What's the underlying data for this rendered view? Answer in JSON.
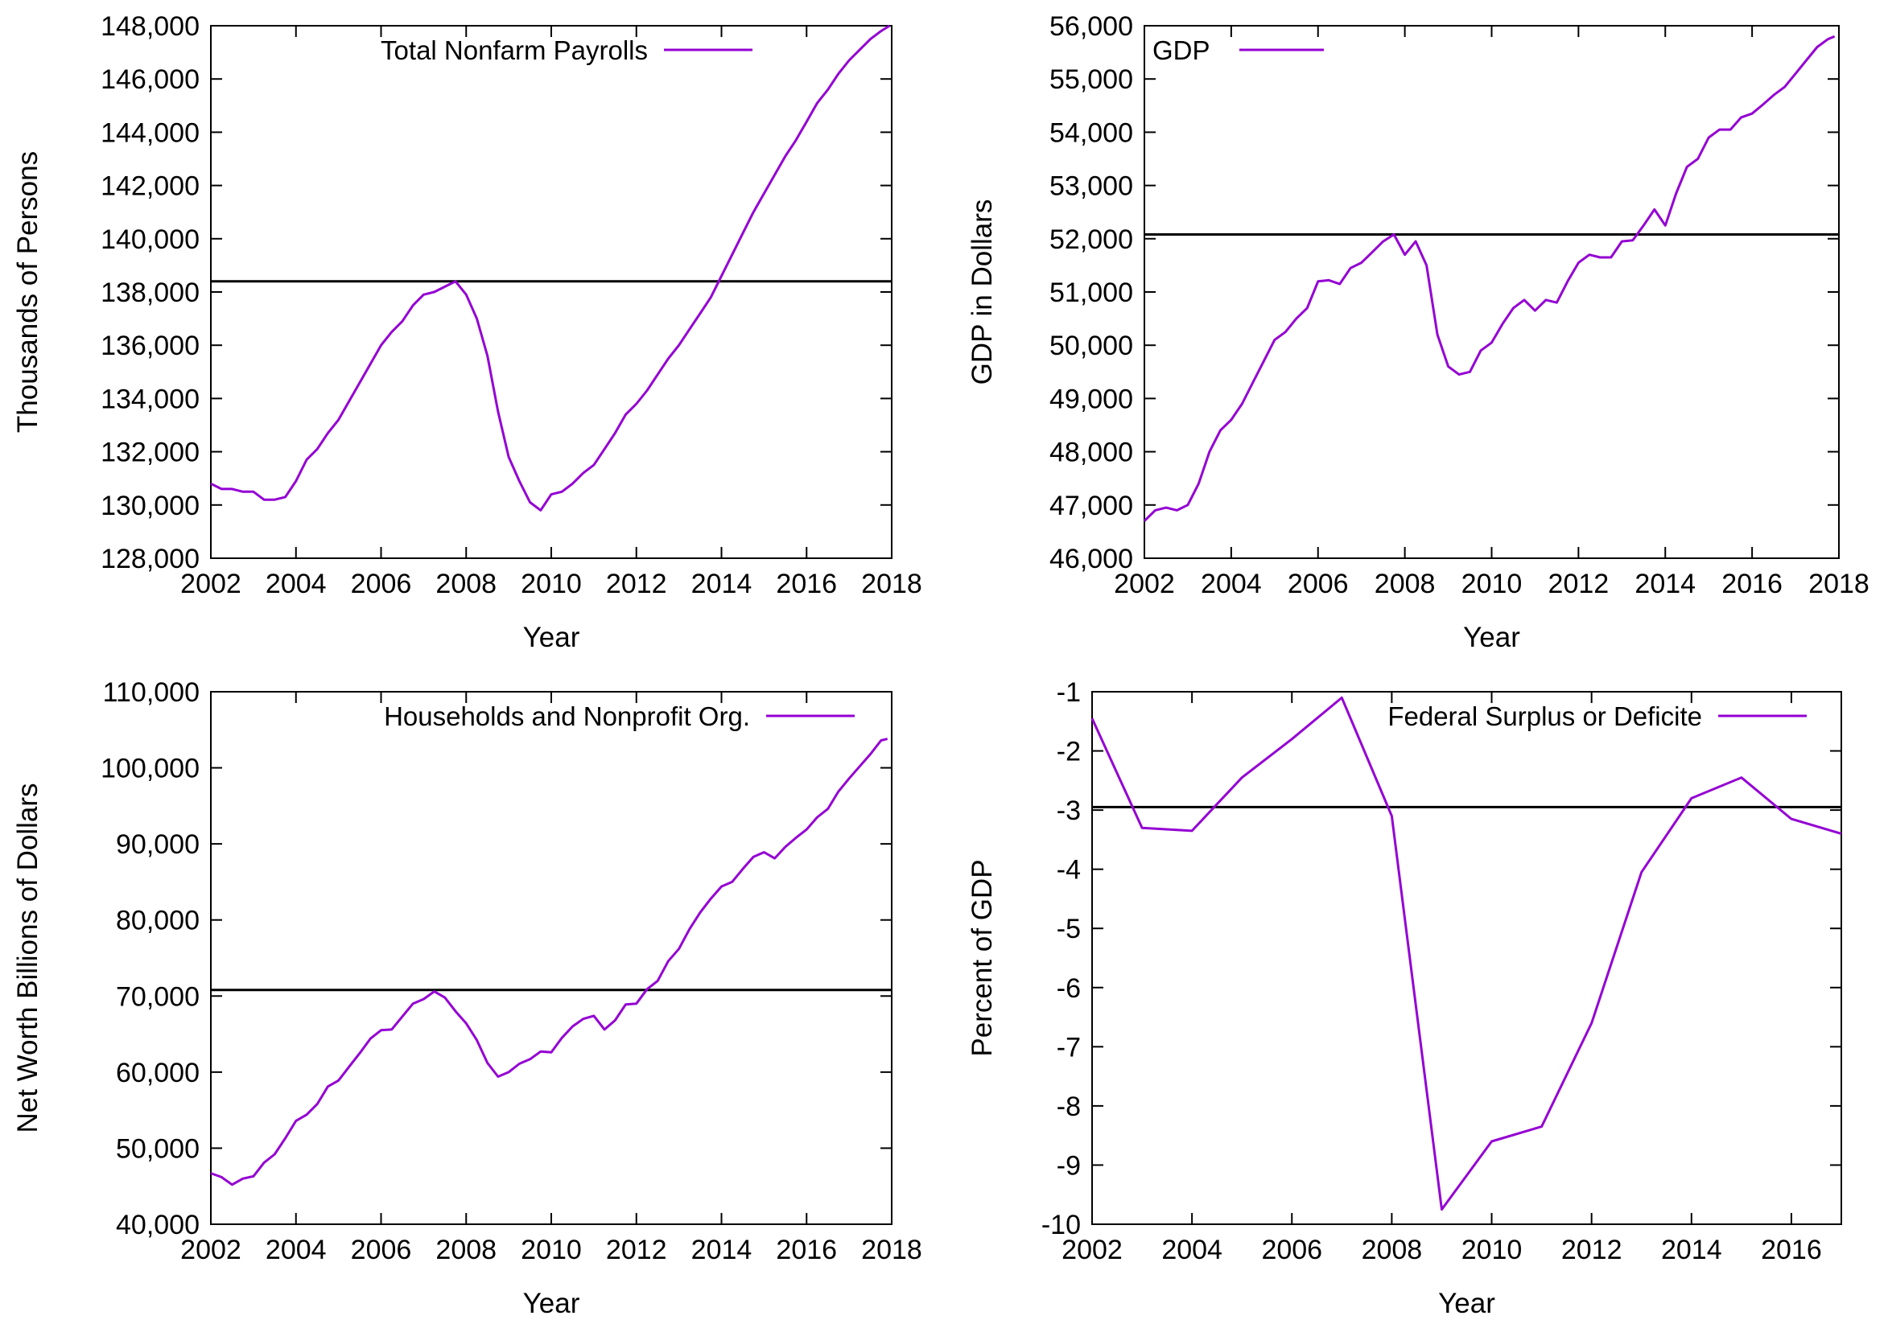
{
  "chart_data": [
    {
      "type": "line",
      "legend": "Total Nonfarm Payrolls",
      "legend_position": "top",
      "xlabel": "Year",
      "ylabel": "Thousands of Persons",
      "xlim": [
        2002,
        2018
      ],
      "ylim": [
        128000,
        148000
      ],
      "xticks": [
        2002,
        2004,
        2006,
        2008,
        2010,
        2012,
        2014,
        2016,
        2018
      ],
      "yticks": [
        128000,
        130000,
        132000,
        134000,
        136000,
        138000,
        140000,
        142000,
        144000,
        146000,
        148000
      ],
      "xtick_labels": [
        "2002",
        "2004",
        "2006",
        "2008",
        "2010",
        "2012",
        "2014",
        "2016",
        "2018"
      ],
      "ytick_labels": [
        "128,000",
        "130,000",
        "132,000",
        "134,000",
        "136,000",
        "138,000",
        "140,000",
        "142,000",
        "144,000",
        "146,000",
        "148,000"
      ],
      "reference_line": 138400,
      "line_color": "#9400d3",
      "series": [
        {
          "x": [
            2002.0,
            2002.25,
            2002.5,
            2002.75,
            2003.0,
            2003.25,
            2003.5,
            2003.75,
            2004.0,
            2004.25,
            2004.5,
            2004.75,
            2005.0,
            2005.25,
            2005.5,
            2005.75,
            2006.0,
            2006.25,
            2006.5,
            2006.75,
            2007.0,
            2007.25,
            2007.5,
            2007.75,
            2008.0,
            2008.25,
            2008.5,
            2008.75,
            2009.0,
            2009.25,
            2009.5,
            2009.75,
            2010.0,
            2010.25,
            2010.5,
            2010.75,
            2011.0,
            2011.25,
            2011.5,
            2011.75,
            2012.0,
            2012.25,
            2012.5,
            2012.75,
            2013.0,
            2013.25,
            2013.5,
            2013.75,
            2014.0,
            2014.25,
            2014.5,
            2014.75,
            2015.0,
            2015.25,
            2015.5,
            2015.75,
            2016.0,
            2016.25,
            2016.5,
            2016.75,
            2017.0,
            2017.25,
            2017.5,
            2017.75,
            2017.95
          ],
          "y": [
            130800,
            130600,
            130600,
            130500,
            130500,
            130200,
            130200,
            130300,
            130900,
            131700,
            132100,
            132700,
            133200,
            133900,
            134600,
            135300,
            136000,
            136500,
            136900,
            137500,
            137900,
            138000,
            138200,
            138400,
            137900,
            137000,
            135600,
            133500,
            131800,
            130900,
            130100,
            129800,
            130400,
            130500,
            130800,
            131200,
            131500,
            132100,
            132700,
            133400,
            133800,
            134300,
            134900,
            135500,
            136000,
            136600,
            137200,
            137800,
            138600,
            139400,
            140200,
            141000,
            141700,
            142400,
            143100,
            143700,
            144400,
            145100,
            145600,
            146200,
            146700,
            147100,
            147500,
            147800,
            148000
          ]
        }
      ]
    },
    {
      "type": "line",
      "legend": "GDP",
      "legend_position": "top-left",
      "xlabel": "Year",
      "ylabel": "GDP in Dollars",
      "xlim": [
        2002,
        2018
      ],
      "ylim": [
        46000,
        56000
      ],
      "xticks": [
        2002,
        2004,
        2006,
        2008,
        2010,
        2012,
        2014,
        2016,
        2018
      ],
      "yticks": [
        46000,
        47000,
        48000,
        49000,
        50000,
        51000,
        52000,
        53000,
        54000,
        55000,
        56000
      ],
      "xtick_labels": [
        "2002",
        "2004",
        "2006",
        "2008",
        "2010",
        "2012",
        "2014",
        "2016",
        "2018"
      ],
      "ytick_labels": [
        "46,000",
        "47,000",
        "48,000",
        "49,000",
        "50,000",
        "51,000",
        "52,000",
        "53,000",
        "54,000",
        "55,000",
        "56,000"
      ],
      "reference_line": 52080,
      "line_color": "#9400d3",
      "series": [
        {
          "x": [
            2002.0,
            2002.25,
            2002.5,
            2002.75,
            2003.0,
            2003.25,
            2003.5,
            2003.75,
            2004.0,
            2004.25,
            2004.5,
            2004.75,
            2005.0,
            2005.25,
            2005.5,
            2005.75,
            2006.0,
            2006.25,
            2006.5,
            2006.75,
            2007.0,
            2007.25,
            2007.5,
            2007.75,
            2008.0,
            2008.25,
            2008.5,
            2008.75,
            2009.0,
            2009.25,
            2009.5,
            2009.75,
            2010.0,
            2010.25,
            2010.5,
            2010.75,
            2011.0,
            2011.25,
            2011.5,
            2011.75,
            2012.0,
            2012.25,
            2012.5,
            2012.75,
            2013.0,
            2013.25,
            2013.5,
            2013.75,
            2014.0,
            2014.25,
            2014.5,
            2014.75,
            2015.0,
            2015.25,
            2015.5,
            2015.75,
            2016.0,
            2016.25,
            2016.5,
            2016.75,
            2017.0,
            2017.25,
            2017.5,
            2017.75,
            2017.9
          ],
          "y": [
            46700,
            46900,
            46950,
            46900,
            47000,
            47400,
            48000,
            48400,
            48600,
            48900,
            49300,
            49700,
            50100,
            50250,
            50500,
            50700,
            51200,
            51220,
            51150,
            51450,
            51550,
            51750,
            51950,
            52080,
            51700,
            51950,
            51500,
            50200,
            49600,
            49450,
            49500,
            49900,
            50050,
            50400,
            50700,
            50850,
            50650,
            50850,
            50800,
            51200,
            51550,
            51700,
            51650,
            51650,
            51950,
            51970,
            52250,
            52550,
            52250,
            52850,
            53350,
            53500,
            53900,
            54050,
            54050,
            54280,
            54350,
            54520,
            54700,
            54850,
            55100,
            55350,
            55600,
            55750,
            55800
          ]
        }
      ]
    },
    {
      "type": "line",
      "legend": "Households and Nonprofit Org.",
      "legend_position": "top",
      "xlabel": "Year",
      "ylabel": "Net Worth Billions of Dollars",
      "xlim": [
        2002,
        2018
      ],
      "ylim": [
        40000,
        110000
      ],
      "xticks": [
        2002,
        2004,
        2006,
        2008,
        2010,
        2012,
        2014,
        2016,
        2018
      ],
      "yticks": [
        40000,
        50000,
        60000,
        70000,
        80000,
        90000,
        100000,
        110000
      ],
      "xtick_labels": [
        "2002",
        "2004",
        "2006",
        "2008",
        "2010",
        "2012",
        "2014",
        "2016",
        "2018"
      ],
      "ytick_labels": [
        "40,000",
        "50,000",
        "60,000",
        "70,000",
        "80,000",
        "90,000",
        "100,000",
        "110,000"
      ],
      "reference_line": 70800,
      "line_color": "#9400d3",
      "series": [
        {
          "x": [
            2002.0,
            2002.25,
            2002.5,
            2002.75,
            2003.0,
            2003.25,
            2003.5,
            2003.75,
            2004.0,
            2004.25,
            2004.5,
            2004.75,
            2005.0,
            2005.25,
            2005.5,
            2005.75,
            2006.0,
            2006.25,
            2006.5,
            2006.75,
            2007.0,
            2007.25,
            2007.5,
            2007.75,
            2008.0,
            2008.25,
            2008.5,
            2008.75,
            2009.0,
            2009.25,
            2009.5,
            2009.75,
            2010.0,
            2010.25,
            2010.5,
            2010.75,
            2011.0,
            2011.25,
            2011.5,
            2011.75,
            2012.0,
            2012.25,
            2012.5,
            2012.75,
            2013.0,
            2013.25,
            2013.5,
            2013.75,
            2014.0,
            2014.25,
            2014.5,
            2014.75,
            2015.0,
            2015.25,
            2015.5,
            2015.75,
            2016.0,
            2016.25,
            2016.5,
            2016.75,
            2017.0,
            2017.25,
            2017.5,
            2017.75,
            2017.9
          ],
          "y": [
            46700,
            46200,
            45200,
            46000,
            46300,
            48100,
            49200,
            51300,
            53600,
            54400,
            55800,
            58100,
            58900,
            60700,
            62500,
            64400,
            65500,
            65600,
            67300,
            69000,
            69600,
            70600,
            69800,
            68000,
            66400,
            64200,
            61200,
            59400,
            60000,
            61100,
            61700,
            62700,
            62600,
            64500,
            66000,
            67000,
            67400,
            65600,
            66800,
            68900,
            69000,
            70900,
            72000,
            74600,
            76200,
            78800,
            81000,
            82800,
            84400,
            85000,
            86700,
            88300,
            88900,
            88100,
            89600,
            90800,
            91900,
            93500,
            94600,
            96900,
            98600,
            100200,
            101800,
            103600,
            103800
          ]
        }
      ]
    },
    {
      "type": "line",
      "legend": "Federal Surplus or Deficite",
      "legend_position": "top-right",
      "xlabel": "Year",
      "ylabel": "Percent of GDP",
      "xlim": [
        2002,
        2017
      ],
      "ylim": [
        -10,
        -1
      ],
      "xticks": [
        2002,
        2004,
        2006,
        2008,
        2010,
        2012,
        2014,
        2016
      ],
      "yticks": [
        -10,
        -9,
        -8,
        -7,
        -6,
        -5,
        -4,
        -3,
        -2,
        -1
      ],
      "xtick_labels": [
        "2002",
        "2004",
        "2006",
        "2008",
        "2010",
        "2012",
        "2014",
        "2016"
      ],
      "ytick_labels": [
        "-10",
        "-9",
        "-8",
        "-7",
        "-6",
        "-5",
        "-4",
        "-3",
        "-2",
        "-1"
      ],
      "reference_line": -2.95,
      "line_color": "#9400d3",
      "series": [
        {
          "x": [
            2002,
            2003,
            2004,
            2005,
            2006,
            2007,
            2008,
            2009,
            2010,
            2011,
            2012,
            2013,
            2014,
            2015,
            2016,
            2017
          ],
          "y": [
            -1.45,
            -3.3,
            -3.35,
            -2.45,
            -1.8,
            -1.1,
            -3.1,
            -9.75,
            -8.6,
            -8.35,
            -6.6,
            -4.05,
            -2.8,
            -2.45,
            -3.15,
            -3.4
          ]
        }
      ]
    }
  ]
}
